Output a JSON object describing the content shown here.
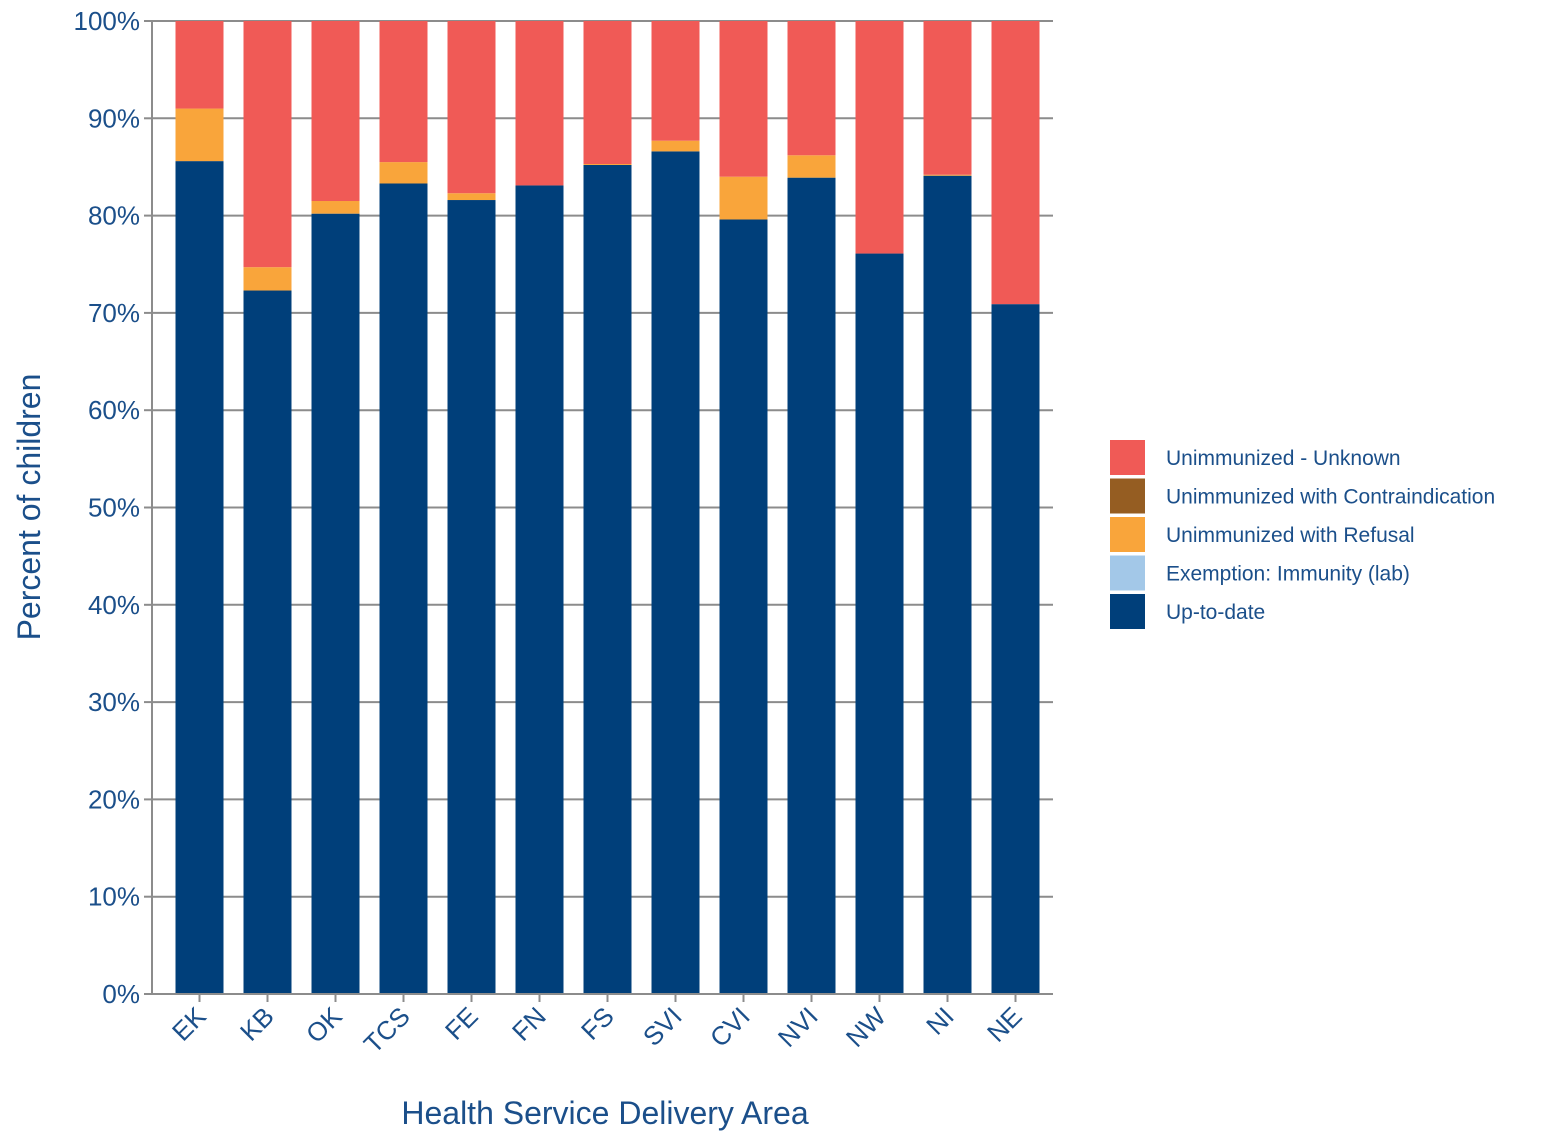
{
  "chart_data": {
    "type": "bar",
    "stacked": true,
    "title": "",
    "xlabel": "Health Service Delivery Area",
    "ylabel": "Percent of children",
    "ylim": [
      0,
      100
    ],
    "y_ticks": [
      "0%",
      "10%",
      "20%",
      "30%",
      "40%",
      "50%",
      "60%",
      "70%",
      "80%",
      "90%",
      "100%"
    ],
    "grid": "horizontal",
    "legend_position": "right",
    "categories": [
      "EK",
      "KB",
      "OK",
      "TCS",
      "FE",
      "FN",
      "FS",
      "SVI",
      "CVI",
      "NVI",
      "NW",
      "NI",
      "NE"
    ],
    "series": [
      {
        "name": "Up-to-date",
        "color": "#003f7a",
        "values": [
          85.6,
          72.3,
          80.2,
          83.3,
          81.6,
          83.1,
          85.2,
          86.6,
          79.6,
          83.9,
          76.1,
          84.1,
          70.9
        ]
      },
      {
        "name": "Exemption: Immunity (lab)",
        "color": "#a3c8e8",
        "values": [
          0,
          0,
          0,
          0,
          0,
          0,
          0,
          0,
          0,
          0,
          0,
          0,
          0
        ]
      },
      {
        "name": "Unimmunized with Refusal",
        "color": "#f9a53b",
        "values": [
          5.4,
          2.4,
          1.3,
          2.2,
          0.7,
          0,
          0.1,
          1.1,
          4.4,
          2.3,
          0,
          0.1,
          0
        ]
      },
      {
        "name": "Unimmunized with Contraindication",
        "color": "#955d22",
        "values": [
          0,
          0,
          0,
          0,
          0,
          0,
          0,
          0,
          0,
          0,
          0,
          0,
          0
        ]
      },
      {
        "name": "Unimmunized - Unknown",
        "color": "#f05a56",
        "values": [
          9.0,
          25.3,
          18.5,
          14.5,
          17.7,
          16.9,
          14.7,
          12.3,
          16.0,
          13.8,
          23.9,
          15.8,
          29.1
        ]
      }
    ],
    "legend_order": [
      "Unimmunized - Unknown",
      "Unimmunized with Contraindication",
      "Unimmunized with Refusal",
      "Exemption: Immunity (lab)",
      "Up-to-date"
    ]
  }
}
